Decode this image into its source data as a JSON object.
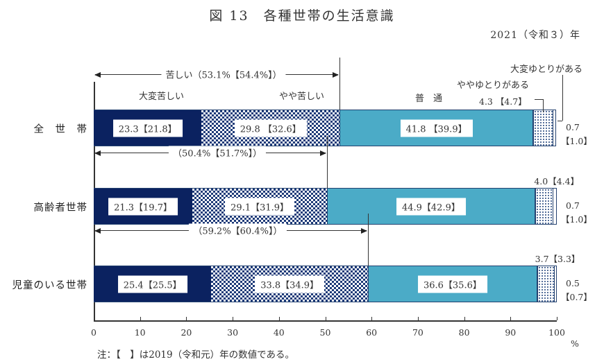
{
  "header": {
    "title": "図 13　各種世帯の生活意識",
    "year": "2021（令和３）年"
  },
  "legend": {
    "kurushii_total_label": "苦しい（53.1%【54.4%】）",
    "s0": "大変苦しい",
    "s1": "やや苦しい",
    "s2": "普　通",
    "s3": "ややゆとりがある",
    "s4": "大変ゆとりがある"
  },
  "rows": [
    {
      "name": "全　世　帯",
      "total_label": "苦しい（53.1%【54.4%】）",
      "labels": [
        "23.3【21.8】",
        "29.8 【32.6】",
        "41.8 【39.9】",
        "4.3 【4.7】",
        "0.7",
        "【1.0】"
      ]
    },
    {
      "name": "高齢者世帯",
      "total_label": "（50.4%【51.7%】）",
      "labels": [
        "21.3【19.7】",
        "29.1【31.9】",
        "44.9【42.9】",
        "4.0【4.4】",
        "0.7",
        "【1.0】"
      ]
    },
    {
      "name": "児童のいる世帯",
      "total_label": "（59.2%【60.4%】）",
      "labels": [
        "25.4【25.5】",
        "33.8【34.9】",
        "36.6【35.6】",
        "3.7【3.3】",
        "0.5",
        "【0.7】"
      ]
    }
  ],
  "axis": {
    "ticks": [
      "0",
      "10",
      "20",
      "30",
      "40",
      "50",
      "60",
      "70",
      "80",
      "90",
      "100"
    ],
    "unit": "%"
  },
  "note": "注：【　】は2019（令和元）年の数値である。",
  "colors": {
    "very_hard": "#0b2260",
    "somewhat_hard": "#1d3a78",
    "normal": "#4babc7",
    "somewhat_comfortable": "#2a4b80",
    "very_comfortable": "#ffffff"
  },
  "chart_data": {
    "type": "bar",
    "orientation": "horizontal",
    "stacked": true,
    "title": "図 13　各種世帯の生活意識",
    "subtitle": "2021（令和３）年",
    "categories": [
      "全世帯",
      "高齢者世帯",
      "児童のいる世帯"
    ],
    "series": [
      {
        "name": "大変苦しい",
        "values": [
          23.3,
          21.3,
          25.4
        ],
        "values_2019": [
          21.8,
          19.7,
          25.5
        ]
      },
      {
        "name": "やや苦しい",
        "values": [
          29.8,
          29.1,
          33.8
        ],
        "values_2019": [
          32.6,
          31.9,
          34.9
        ]
      },
      {
        "name": "普通",
        "values": [
          41.8,
          44.9,
          36.6
        ],
        "values_2019": [
          39.9,
          42.9,
          35.6
        ]
      },
      {
        "name": "ややゆとりがある",
        "values": [
          4.3,
          4.0,
          3.7
        ],
        "values_2019": [
          4.7,
          4.4,
          3.3
        ]
      },
      {
        "name": "大変ゆとりがある",
        "values": [
          0.7,
          0.7,
          0.5
        ],
        "values_2019": [
          1.0,
          1.0,
          0.7
        ]
      }
    ],
    "annotations": [
      {
        "category": "全世帯",
        "text": "苦しい（53.1%【54.4%】）",
        "value": 53.1,
        "value_2019": 54.4
      },
      {
        "category": "高齢者世帯",
        "text": "（50.4%【51.7%】）",
        "value": 50.4,
        "value_2019": 51.7
      },
      {
        "category": "児童のいる世帯",
        "text": "（59.2%【60.4%】）",
        "value": 59.2,
        "value_2019": 60.4
      }
    ],
    "xlabel": "%",
    "ylabel": "",
    "xlim": [
      0,
      100
    ],
    "xticks": [
      0,
      10,
      20,
      30,
      40,
      50,
      60,
      70,
      80,
      90,
      100
    ],
    "grid": false,
    "legend_position": "inline labels above first bar",
    "note": "注：【　】は2019（令和元）年の数値である。"
  }
}
